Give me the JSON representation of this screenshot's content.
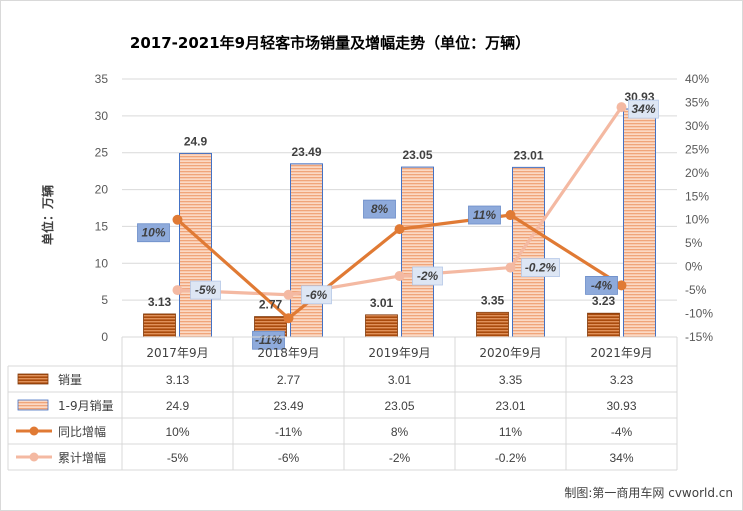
{
  "chart_data": {
    "type": "bar",
    "title": "2017-2021年9月轻客市场销量及增幅走势（单位：万辆）",
    "ylabel": "单位：万辆",
    "categories": [
      "2017年9月",
      "2018年9月",
      "2019年9月",
      "2020年9月",
      "2021年9月"
    ],
    "ylim": [
      0,
      35
    ],
    "y_ticks": [
      "0",
      "5",
      "10",
      "15",
      "20",
      "25",
      "30",
      "35"
    ],
    "y2lim": [
      -15,
      40
    ],
    "y2_ticks": [
      "-15%",
      "-10%",
      "-5%",
      "0%",
      "5%",
      "10%",
      "15%",
      "20%",
      "25%",
      "30%",
      "35%",
      "40%"
    ],
    "grid": true,
    "legend": "data-table-below",
    "series": [
      {
        "name": "销量",
        "kind": "bar",
        "axis": "left",
        "color": "#c55a11",
        "values": [
          3.13,
          2.77,
          3.01,
          3.35,
          3.23
        ],
        "labels": [
          "3.13",
          "2.77",
          "3.01",
          "3.35",
          "3.23"
        ]
      },
      {
        "name": "1-9月销量",
        "kind": "bar",
        "axis": "left",
        "color": "#f4b183",
        "values": [
          24.9,
          23.49,
          23.05,
          23.01,
          30.93
        ],
        "labels": [
          "24.9",
          "23.49",
          "23.05",
          "23.01",
          "30.93"
        ]
      },
      {
        "name": "同比增幅",
        "kind": "line",
        "axis": "right",
        "color": "#e07a34",
        "values": [
          10,
          -11,
          8,
          11,
          -4
        ],
        "labels": [
          "10%",
          "-11%",
          "8%",
          "11%",
          "-4%"
        ]
      },
      {
        "name": "累计增幅",
        "kind": "line",
        "axis": "right",
        "color": "#f4b9a2",
        "values": [
          -5,
          -6,
          -2,
          -0.2,
          34
        ],
        "labels": [
          "-5%",
          "-6%",
          "-2%",
          "-0.2%",
          "34%"
        ]
      }
    ]
  },
  "credit": "制图:第一商用车网 cvworld.cn"
}
